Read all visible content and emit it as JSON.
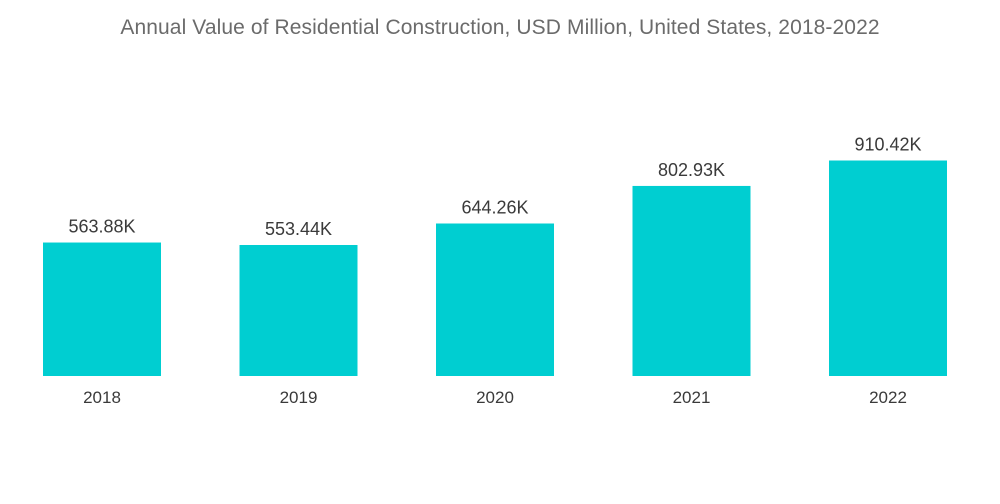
{
  "chart_data": {
    "type": "bar",
    "title": "Annual Value of Residential Construction, USD Million, United States, 2018-2022",
    "xlabel": "",
    "ylabel": "",
    "categories": [
      "2018",
      "2019",
      "2020",
      "2021",
      "2022"
    ],
    "values": [
      563.88,
      553.44,
      644.26,
      802.93,
      910.42
    ],
    "value_labels": [
      "563.88K",
      "553.44K",
      "644.26K",
      "802.93K",
      "910.42K"
    ],
    "ylim": [
      0,
      1000
    ],
    "grid": false,
    "legend": "none",
    "colors": {
      "bar": "#00ced1"
    }
  }
}
